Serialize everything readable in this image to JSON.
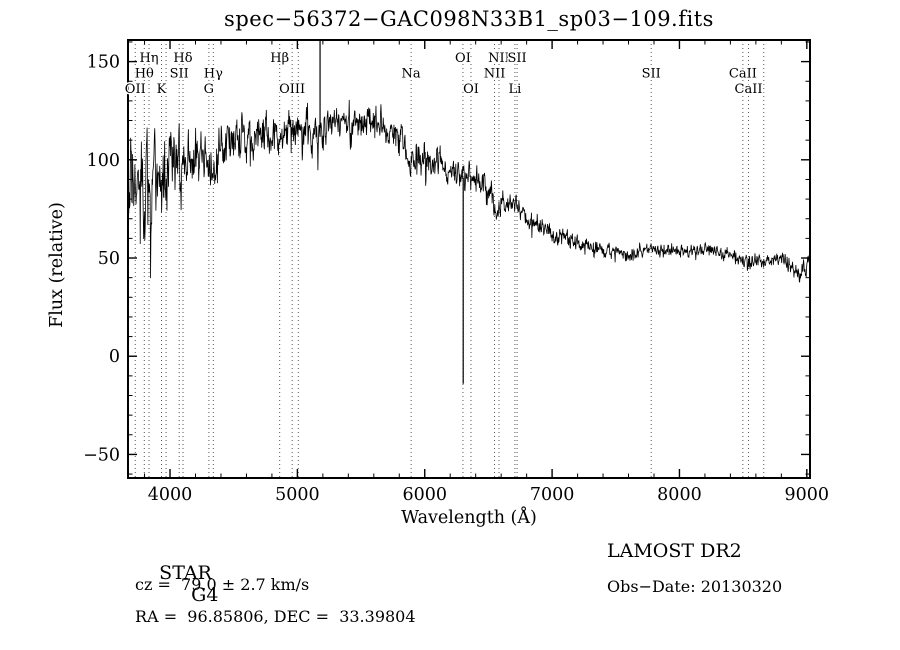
{
  "title": "spec−56372−GAC098N33B1_sp03−109.fits",
  "annotations": {
    "class_label": "STAR",
    "subclass": "G4",
    "survey": "LAMOST DR2",
    "cz": "cz =  79.0 ± 2.7 km/s",
    "obs_date": "Obs−Date: 20130320",
    "ra_dec": "RA =  96.85806, DEC =  33.39804"
  },
  "chart_data": {
    "type": "line",
    "title": "spec−56372−GAC098N33B1_sp03−109.fits",
    "xlabel": "Wavelength (Å)",
    "ylabel": "Flux (relative)",
    "xlim": [
      3670,
      9025
    ],
    "ylim": [
      -62,
      161
    ],
    "xticks": [
      4000,
      5000,
      6000,
      7000,
      8000,
      9000
    ],
    "xminor_step": 200,
    "yticks": [
      -50,
      0,
      50,
      100,
      150
    ],
    "yminor_step": 10,
    "grid": false,
    "legend": "none",
    "line_color": "#000000",
    "marker_color": "#555555",
    "sample_step": 3,
    "seed": 20130320,
    "continuum": [
      [
        3670,
        85
      ],
      [
        3700,
        90
      ],
      [
        3727,
        78
      ],
      [
        3750,
        92
      ],
      [
        3798,
        83
      ],
      [
        3820,
        93
      ],
      [
        3835,
        86
      ],
      [
        3870,
        95
      ],
      [
        3905,
        90
      ],
      [
        3933,
        80
      ],
      [
        3955,
        94
      ],
      [
        3969,
        86
      ],
      [
        4000,
        99
      ],
      [
        4050,
        102
      ],
      [
        4072,
        98
      ],
      [
        4102,
        91
      ],
      [
        4140,
        103
      ],
      [
        4200,
        105
      ],
      [
        4260,
        106
      ],
      [
        4305,
        97
      ],
      [
        4340,
        94
      ],
      [
        4390,
        107
      ],
      [
        4450,
        109
      ],
      [
        4550,
        111
      ],
      [
        4650,
        112
      ],
      [
        4750,
        114
      ],
      [
        4820,
        115
      ],
      [
        4861,
        104
      ],
      [
        4910,
        114
      ],
      [
        5000,
        116
      ],
      [
        5080,
        118
      ],
      [
        5170,
        111
      ],
      [
        5260,
        119
      ],
      [
        5350,
        121
      ],
      [
        5450,
        122
      ],
      [
        5550,
        120
      ],
      [
        5650,
        117
      ],
      [
        5750,
        114
      ],
      [
        5840,
        110
      ],
      [
        5893,
        96
      ],
      [
        5940,
        106
      ],
      [
        6000,
        103
      ],
      [
        6080,
        100
      ],
      [
        6160,
        96
      ],
      [
        6250,
        92
      ],
      [
        6350,
        90
      ],
      [
        6440,
        88
      ],
      [
        6510,
        85
      ],
      [
        6563,
        76
      ],
      [
        6620,
        81
      ],
      [
        6700,
        77
      ],
      [
        6790,
        72
      ],
      [
        6880,
        68
      ],
      [
        6970,
        64
      ],
      [
        7060,
        61
      ],
      [
        7150,
        59
      ],
      [
        7250,
        56
      ],
      [
        7350,
        55
      ],
      [
        7450,
        54
      ],
      [
        7550,
        53
      ],
      [
        7650,
        53
      ],
      [
        7750,
        55
      ],
      [
        7850,
        54
      ],
      [
        7950,
        54
      ],
      [
        8050,
        53
      ],
      [
        8150,
        53
      ],
      [
        8250,
        54
      ],
      [
        8350,
        52
      ],
      [
        8440,
        52
      ],
      [
        8498,
        49
      ],
      [
        8542,
        48
      ],
      [
        8600,
        51
      ],
      [
        8662,
        47
      ],
      [
        8720,
        50
      ],
      [
        8800,
        49
      ],
      [
        8870,
        46
      ],
      [
        8930,
        43
      ],
      [
        8970,
        45
      ],
      [
        9025,
        47
      ]
    ],
    "noise_envelope": [
      [
        3670,
        26
      ],
      [
        3800,
        24
      ],
      [
        3950,
        20
      ],
      [
        4100,
        16
      ],
      [
        4300,
        13
      ],
      [
        4600,
        11
      ],
      [
        5000,
        10
      ],
      [
        5400,
        9
      ],
      [
        5800,
        9
      ],
      [
        6200,
        8
      ],
      [
        6500,
        7
      ],
      [
        6700,
        6
      ],
      [
        6900,
        5
      ],
      [
        7200,
        4.5
      ],
      [
        7600,
        4
      ],
      [
        8200,
        3.5
      ],
      [
        8700,
        4
      ],
      [
        9025,
        5
      ]
    ],
    "spikes": [
      {
        "wavelength": 5178,
        "flux": 163
      },
      {
        "wavelength": 6302,
        "flux": -14
      }
    ],
    "spectral_lines": [
      {
        "label": "Hη",
        "wavelength": 3835,
        "row": 1
      },
      {
        "label": "Hδ",
        "wavelength": 4102,
        "row": 1
      },
      {
        "label": "Hβ",
        "wavelength": 4861,
        "row": 1
      },
      {
        "label": "OI",
        "wavelength": 6300,
        "row": 1
      },
      {
        "label": "NII",
        "wavelength": 6583,
        "row": 1
      },
      {
        "label": "SII",
        "wavelength": 6725,
        "row": 1
      },
      {
        "label": "Hθ",
        "wavelength": 3798,
        "row": 2
      },
      {
        "label": "SII",
        "wavelength": 4072,
        "row": 2
      },
      {
        "label": "Hγ",
        "wavelength": 4340,
        "row": 2
      },
      {
        "label": "Na",
        "wavelength": 5893,
        "row": 2
      },
      {
        "label": "NII",
        "wavelength": 6548,
        "row": 2
      },
      {
        "label": "SII",
        "wavelength": 7778,
        "row": 2
      },
      {
        "label": "CaII",
        "wavelength": 8498,
        "row": 2
      },
      {
        "label": "OII",
        "wavelength": 3727,
        "row": 3
      },
      {
        "label": "K",
        "wavelength": 3933,
        "row": 3
      },
      {
        "label": "G",
        "wavelength": 4305,
        "row": 3
      },
      {
        "label": "OIII",
        "wavelength": 4959,
        "row": 3
      },
      {
        "label": "OI",
        "wavelength": 6363,
        "row": 3
      },
      {
        "label": "Li",
        "wavelength": 6708,
        "row": 3
      },
      {
        "label": "CaII",
        "wavelength": 8542,
        "row": 3
      }
    ],
    "unlabeled_lines": [
      3969,
      5007,
      8662
    ]
  }
}
